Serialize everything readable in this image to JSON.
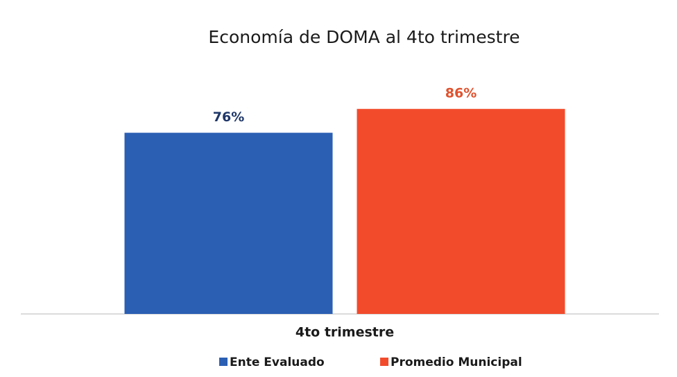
{
  "chart_data": {
    "type": "bar",
    "title": "Economía de DOMA al 4to trimestre",
    "categories": [
      "4to trimestre"
    ],
    "series": [
      {
        "name": "Ente Evaluado",
        "color": "#2b5fb3",
        "label_color": "#1f3768",
        "values": [
          76
        ],
        "value_labels": [
          "76%"
        ]
      },
      {
        "name": "Promedio Municipal",
        "color": "#f24b2c",
        "label_color": "#e0522e",
        "values": [
          86
        ],
        "value_labels": [
          "86%"
        ]
      }
    ],
    "ylim": [
      0,
      100
    ]
  }
}
